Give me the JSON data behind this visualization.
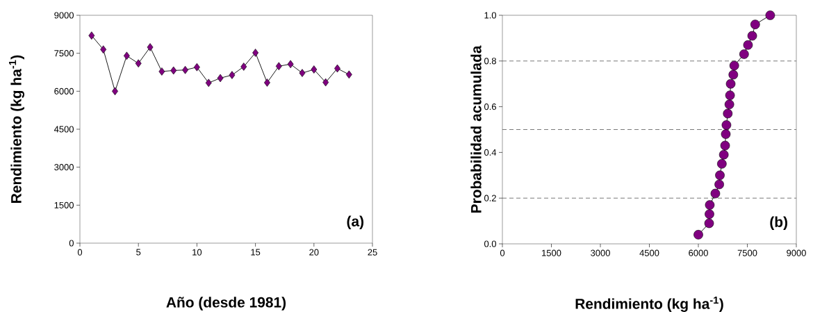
{
  "chart_data": [
    {
      "type": "line",
      "xlabel": "Año (desde 1981)",
      "ylabel": "Rendimiento (kg ha$^{-1}$)",
      "annotations": [
        "(a)"
      ],
      "x": [
        1,
        2,
        3,
        4,
        5,
        6,
        7,
        8,
        9,
        10,
        11,
        12,
        13,
        14,
        15,
        16,
        17,
        18,
        19,
        20,
        21,
        22,
        23
      ],
      "series": [
        {
          "color": "#800080",
          "values": [
            8200,
            7650,
            6000,
            7400,
            7100,
            7740,
            6780,
            6820,
            6840,
            6950,
            6330,
            6520,
            6640,
            6970,
            7520,
            6340,
            6990,
            7070,
            6720,
            6860,
            6350,
            6900,
            6660
          ]
        }
      ],
      "xlim": [
        0,
        25
      ],
      "xticks": [
        0,
        5,
        10,
        15,
        20,
        25
      ],
      "ylim": [
        0,
        9000
      ],
      "yticks": [
        0,
        1500,
        3000,
        4500,
        6000,
        7500,
        9000
      ],
      "marker": "diamond",
      "line_style": "solid"
    },
    {
      "type": "line",
      "xlabel": "Rendimiento (kg ha$^{-1}$)",
      "ylabel": "Probabilidad acumulada",
      "annotations": [
        "(b)"
      ],
      "x": [
        6000,
        6330,
        6340,
        6350,
        6520,
        6640,
        6660,
        6720,
        6780,
        6820,
        6840,
        6860,
        6900,
        6950,
        6970,
        6990,
        7070,
        7100,
        7400,
        7520,
        7650,
        7740,
        8200
      ],
      "series": [
        {
          "color": "#800080",
          "values": [
            0.04,
            0.09,
            0.13,
            0.17,
            0.22,
            0.26,
            0.3,
            0.35,
            0.39,
            0.43,
            0.48,
            0.52,
            0.57,
            0.61,
            0.65,
            0.7,
            0.74,
            0.78,
            0.83,
            0.87,
            0.91,
            0.96,
            1.0
          ]
        }
      ],
      "xlim": [
        0,
        9000
      ],
      "xticks": [
        0,
        1500,
        3000,
        4500,
        6000,
        7500,
        9000
      ],
      "ylim": [
        0,
        1.0
      ],
      "yticks": [
        {
          "value": 0,
          "label": "0.0"
        },
        0.2,
        0.4,
        0.6,
        0.8,
        {
          "value": 1.0,
          "label": "1.0"
        }
      ],
      "ref_lines": [
        {
          "axis": "y",
          "value": 0.2,
          "color": "#555555",
          "line_style": "dashed"
        },
        {
          "axis": "y",
          "value": 0.5,
          "color": "#555555",
          "line_style": "dashed"
        },
        {
          "axis": "y",
          "value": 0.8,
          "color": "#555555",
          "line_style": "dashed"
        }
      ],
      "marker": "circle",
      "line_style": "solid"
    }
  ]
}
